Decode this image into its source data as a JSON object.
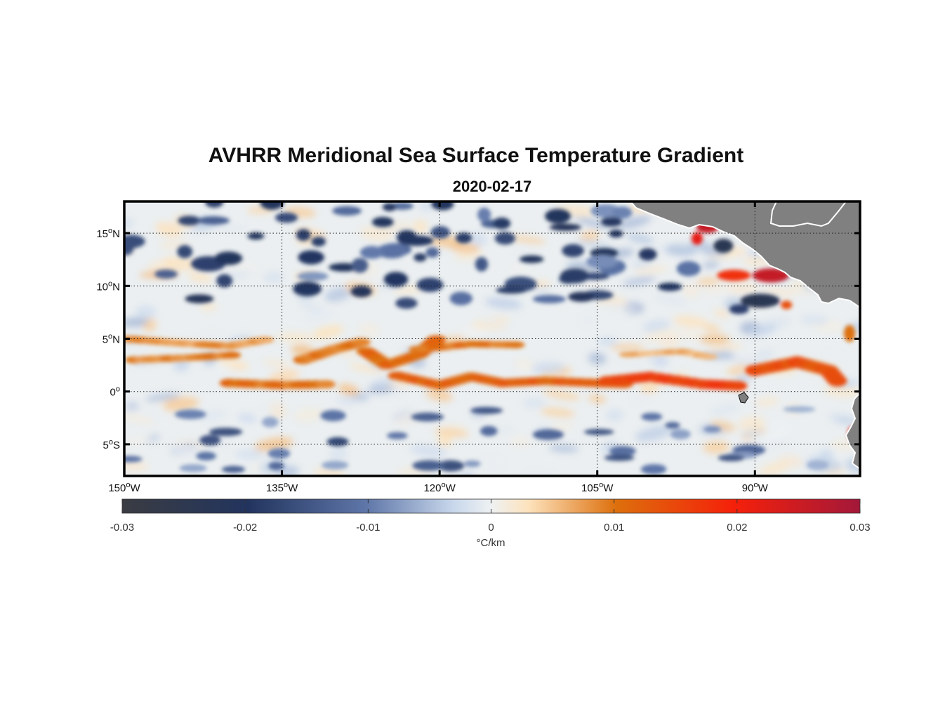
{
  "figure": {
    "title": "AVHRR Meridional Sea Surface Temperature Gradient",
    "subtitle": "2020-02-17"
  },
  "map": {
    "type": "heatmap",
    "lon_range": [
      -150,
      -80
    ],
    "lat_range": [
      -8,
      18
    ],
    "x_ticks": [
      {
        "value": -150,
        "num": "150",
        "sup": "o",
        "suffix": "W"
      },
      {
        "value": -135,
        "num": "135",
        "sup": "o",
        "suffix": "W"
      },
      {
        "value": -120,
        "num": "120",
        "sup": "o",
        "suffix": "W"
      },
      {
        "value": -105,
        "num": "105",
        "sup": "o",
        "suffix": "W"
      },
      {
        "value": -90,
        "num": "90",
        "sup": "o",
        "suffix": "W"
      }
    ],
    "y_ticks": [
      {
        "value": 15,
        "num": "15",
        "sup": "o",
        "suffix": "N"
      },
      {
        "value": 10,
        "num": "10",
        "sup": "o",
        "suffix": "N"
      },
      {
        "value": 5,
        "num": "5",
        "sup": "o",
        "suffix": "N"
      },
      {
        "value": 0,
        "num": "0",
        "sup": "o",
        "suffix": ""
      },
      {
        "value": -5,
        "num": "5",
        "sup": "o",
        "suffix": "S"
      }
    ],
    "grid": "dotted",
    "land_color": "#808080"
  },
  "chart_data": {
    "type": "heatmap",
    "title": "AVHRR Meridional Sea Surface Temperature Gradient",
    "subtitle": "2020-02-17",
    "xlabel": "",
    "ylabel": "",
    "xlim": [
      -150,
      -80
    ],
    "ylim": [
      -8,
      18
    ],
    "colorbar": {
      "label": "°C/km",
      "range": [
        -0.03,
        0.03
      ],
      "ticks": [
        "-0.03",
        "-0.02",
        "-0.01",
        "0",
        "0.01",
        "0.02",
        "0.03"
      ],
      "colors": [
        "#3a3c42",
        "#22345e",
        "#5e76a8",
        "#e7ecf1",
        "#fde3bd",
        "#dd6f0c",
        "#f5200a",
        "#a3183a"
      ]
    },
    "features": [
      {
        "name": "equatorial positive band",
        "lat": 0.5,
        "lon_range": [
          -135,
          -82
        ],
        "value": 0.012
      },
      {
        "name": "northern positive band",
        "lat": 4.5,
        "lon_range": [
          -150,
          -103
        ],
        "value": 0.01
      },
      {
        "name": "gulf of tehuantepec dipole positive",
        "lat": 15.5,
        "lon": -94,
        "value": 0.025
      },
      {
        "name": "gulf of papagayo positive",
        "lat": 11,
        "lon": -89,
        "value": 0.025
      },
      {
        "name": "gulf of papagayo negative",
        "lat": 8.5,
        "lon": -89,
        "value": -0.022
      },
      {
        "name": "scattered northern negatives",
        "lat": 13,
        "lon_range": [
          -150,
          -105
        ],
        "value": -0.015
      }
    ]
  }
}
